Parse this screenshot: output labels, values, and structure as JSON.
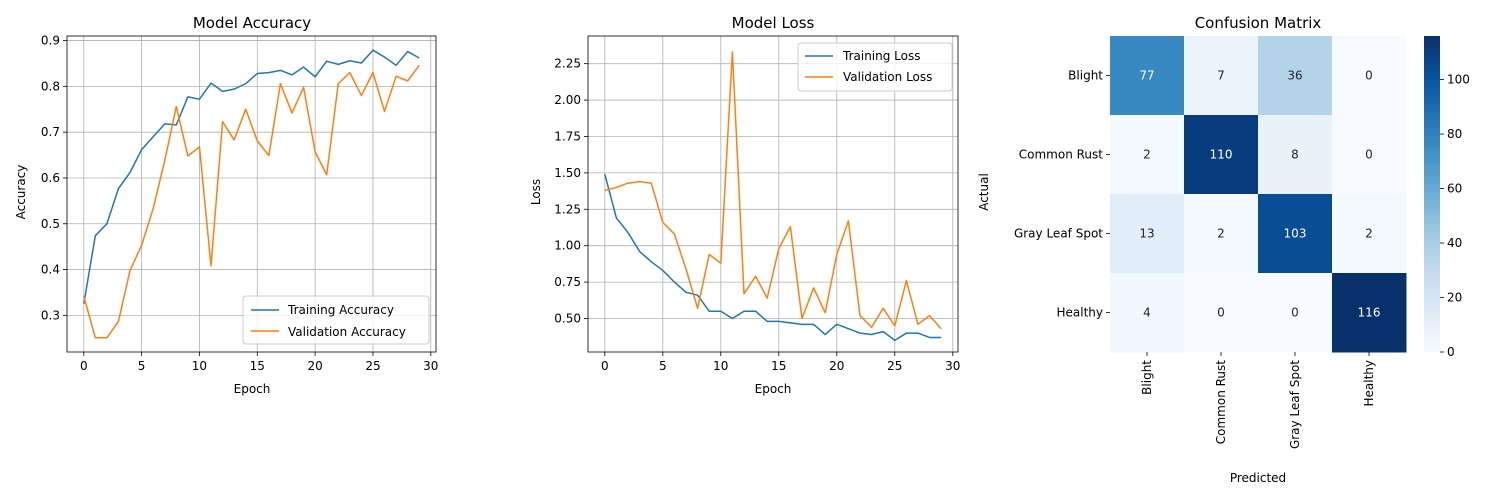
{
  "chart_data": [
    {
      "type": "line",
      "title": "Model Accuracy",
      "xlabel": "Epoch",
      "ylabel": "Accuracy",
      "xlim": [
        -1.45,
        30.45
      ],
      "ylim": [
        0.22,
        0.91
      ],
      "xticks": [
        0,
        5,
        10,
        15,
        20,
        25,
        30
      ],
      "yticks": [
        0.3,
        0.4,
        0.5,
        0.6,
        0.7,
        0.8,
        0.9
      ],
      "grid": true,
      "legend": "lower-right",
      "x": [
        0,
        1,
        2,
        3,
        4,
        5,
        6,
        7,
        8,
        9,
        10,
        11,
        12,
        13,
        14,
        15,
        16,
        17,
        18,
        19,
        20,
        21,
        22,
        23,
        24,
        25,
        26,
        27,
        28,
        29
      ],
      "series": [
        {
          "name": "Training Accuracy",
          "color": "#1f77b4",
          "values": [
            0.325,
            0.474,
            0.5,
            0.577,
            0.612,
            0.662,
            0.69,
            0.718,
            0.716,
            0.777,
            0.772,
            0.807,
            0.789,
            0.794,
            0.806,
            0.828,
            0.83,
            0.835,
            0.825,
            0.842,
            0.821,
            0.855,
            0.848,
            0.856,
            0.851,
            0.879,
            0.864,
            0.846,
            0.876,
            0.862
          ]
        },
        {
          "name": "Validation Accuracy",
          "color": "#ff7f0e",
          "values": [
            0.342,
            0.251,
            0.251,
            0.287,
            0.398,
            0.453,
            0.533,
            0.638,
            0.756,
            0.648,
            0.668,
            0.408,
            0.723,
            0.683,
            0.75,
            0.681,
            0.649,
            0.806,
            0.742,
            0.798,
            0.657,
            0.607,
            0.806,
            0.83,
            0.78,
            0.83,
            0.745,
            0.822,
            0.812,
            0.846
          ]
        }
      ]
    },
    {
      "type": "line",
      "title": "Model Loss",
      "xlabel": "Epoch",
      "ylabel": "Loss",
      "xlim": [
        -1.45,
        30.45
      ],
      "ylim": [
        0.27,
        2.44
      ],
      "xticks": [
        0,
        5,
        10,
        15,
        20,
        25,
        30
      ],
      "yticks": [
        0.5,
        0.75,
        1.0,
        1.25,
        1.5,
        1.75,
        2.0,
        2.25
      ],
      "ytick_labels": [
        "0.50",
        "0.75",
        "1.00",
        "1.25",
        "1.50",
        "1.75",
        "2.00",
        "2.25"
      ],
      "grid": true,
      "legend": "upper-right",
      "x": [
        0,
        1,
        2,
        3,
        4,
        5,
        6,
        7,
        8,
        9,
        10,
        11,
        12,
        13,
        14,
        15,
        16,
        17,
        18,
        19,
        20,
        21,
        22,
        23,
        24,
        25,
        26,
        27,
        28,
        29
      ],
      "series": [
        {
          "name": "Training Loss",
          "color": "#1f77b4",
          "values": [
            1.49,
            1.19,
            1.09,
            0.96,
            0.89,
            0.83,
            0.75,
            0.68,
            0.66,
            0.55,
            0.55,
            0.5,
            0.55,
            0.55,
            0.48,
            0.48,
            0.47,
            0.46,
            0.46,
            0.39,
            0.46,
            0.43,
            0.4,
            0.39,
            0.41,
            0.35,
            0.4,
            0.4,
            0.37,
            0.37
          ]
        },
        {
          "name": "Validation Loss",
          "color": "#ff7f0e",
          "values": [
            1.38,
            1.4,
            1.43,
            1.44,
            1.43,
            1.16,
            1.08,
            0.84,
            0.57,
            0.94,
            0.88,
            2.33,
            0.67,
            0.79,
            0.64,
            0.98,
            1.13,
            0.5,
            0.71,
            0.54,
            0.94,
            1.17,
            0.52,
            0.44,
            0.57,
            0.45,
            0.76,
            0.46,
            0.52,
            0.43
          ]
        }
      ]
    },
    {
      "type": "heatmap",
      "title": "Confusion Matrix",
      "xlabel": "Predicted",
      "ylabel": "Actual",
      "row_labels": [
        "Blight",
        "Common Rust",
        "Gray Leaf Spot",
        "Healthy"
      ],
      "col_labels": [
        "Blight",
        "Common Rust",
        "Gray Leaf Spot",
        "Healthy"
      ],
      "values": [
        [
          77,
          7,
          36,
          0
        ],
        [
          2,
          110,
          8,
          0
        ],
        [
          13,
          2,
          103,
          2
        ],
        [
          4,
          0,
          0,
          116
        ]
      ],
      "vmin": 0,
      "vmax": 116,
      "colormap": "Blues",
      "colorbar_ticks": [
        0,
        20,
        40,
        60,
        80,
        100
      ]
    }
  ]
}
